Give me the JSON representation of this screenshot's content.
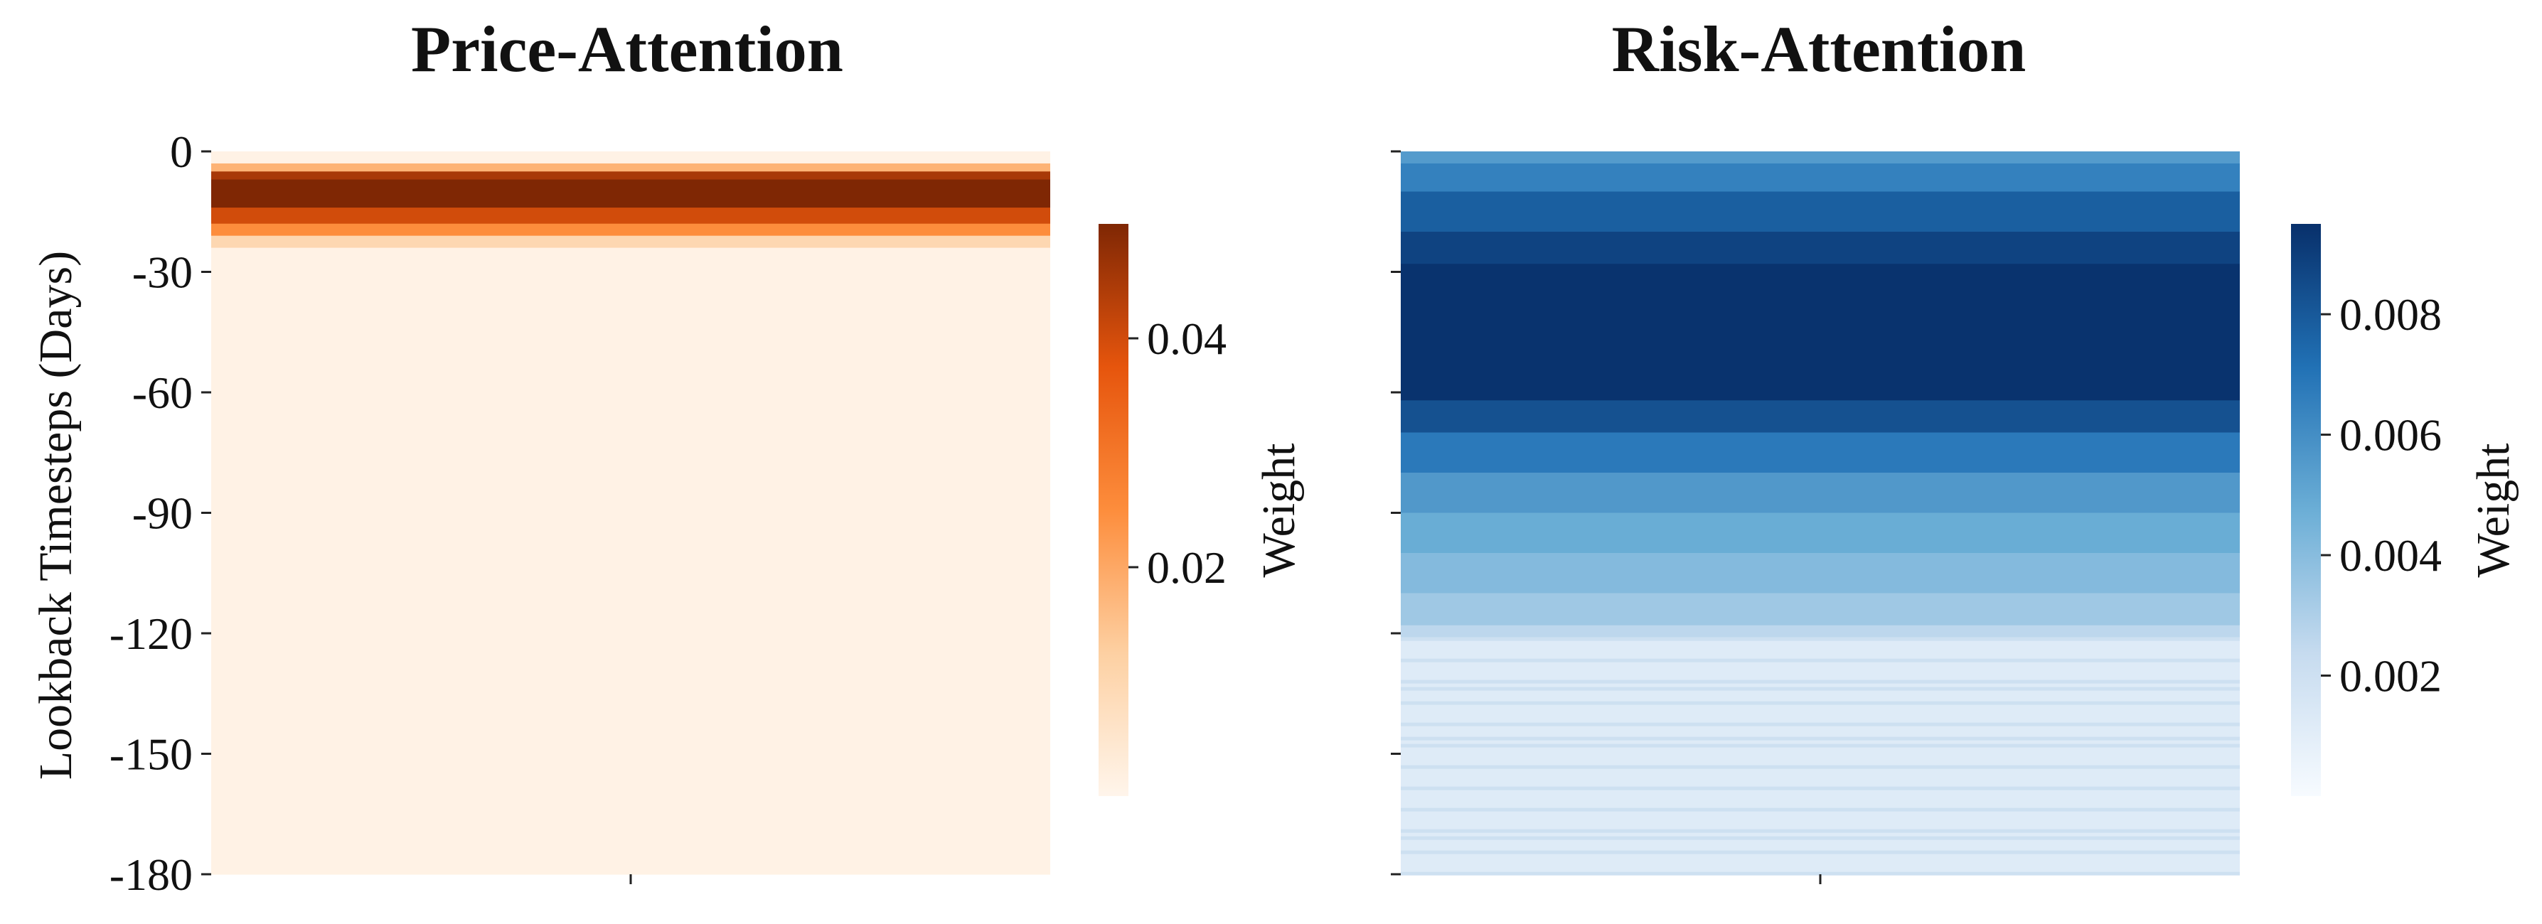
{
  "chart_data": [
    {
      "type": "heatmap",
      "title": "Price-Attention",
      "ylabel": "Lookback Timesteps (Days)",
      "xlabel": "",
      "x_tick_labels": [
        ""
      ],
      "ylim": [
        0,
        -180
      ],
      "y_ticks": [
        0,
        -30,
        -60,
        -90,
        -120,
        -150,
        -180
      ],
      "colormap": "Oranges",
      "colorbar": {
        "label": "Weight",
        "range": [
          0.0,
          0.05
        ],
        "ticks": [
          0.02,
          0.04
        ]
      },
      "rows": [
        {
          "from": 0,
          "to": -3,
          "weight": 0.001
        },
        {
          "from": -3,
          "to": -5,
          "weight": 0.018
        },
        {
          "from": -5,
          "to": -7,
          "weight": 0.045
        },
        {
          "from": -7,
          "to": -14,
          "weight": 0.05
        },
        {
          "from": -14,
          "to": -18,
          "weight": 0.04
        },
        {
          "from": -18,
          "to": -21,
          "weight": 0.025
        },
        {
          "from": -21,
          "to": -24,
          "weight": 0.01
        },
        {
          "from": -24,
          "to": -180,
          "weight": 0.001
        }
      ]
    },
    {
      "type": "heatmap",
      "title": "Risk-Attention",
      "ylabel": "",
      "xlabel": "",
      "x_tick_labels": [
        ""
      ],
      "ylim": [
        0,
        -180
      ],
      "y_ticks": [
        0,
        -30,
        -60,
        -90,
        -120,
        -150,
        -180
      ],
      "y_tick_labels_visible": false,
      "colormap": "Blues",
      "colorbar": {
        "label": "Weight",
        "range": [
          0.0,
          0.0095
        ],
        "ticks": [
          0.002,
          0.004,
          0.006,
          0.008
        ]
      },
      "rows": [
        {
          "from": 0,
          "to": -3,
          "weight": 0.0055
        },
        {
          "from": -3,
          "to": -10,
          "weight": 0.0065
        },
        {
          "from": -10,
          "to": -20,
          "weight": 0.0078
        },
        {
          "from": -20,
          "to": -28,
          "weight": 0.0088
        },
        {
          "from": -28,
          "to": -62,
          "weight": 0.0094
        },
        {
          "from": -62,
          "to": -70,
          "weight": 0.0083
        },
        {
          "from": -70,
          "to": -80,
          "weight": 0.0068
        },
        {
          "from": -80,
          "to": -90,
          "weight": 0.0056
        },
        {
          "from": -90,
          "to": -100,
          "weight": 0.0048
        },
        {
          "from": -100,
          "to": -110,
          "weight": 0.0041
        },
        {
          "from": -110,
          "to": -118,
          "weight": 0.0034
        },
        {
          "from": -118,
          "to": -121,
          "weight": 0.0026
        },
        {
          "from": -121,
          "to": -180,
          "weight": 0.0012,
          "note": "striped"
        }
      ]
    }
  ]
}
